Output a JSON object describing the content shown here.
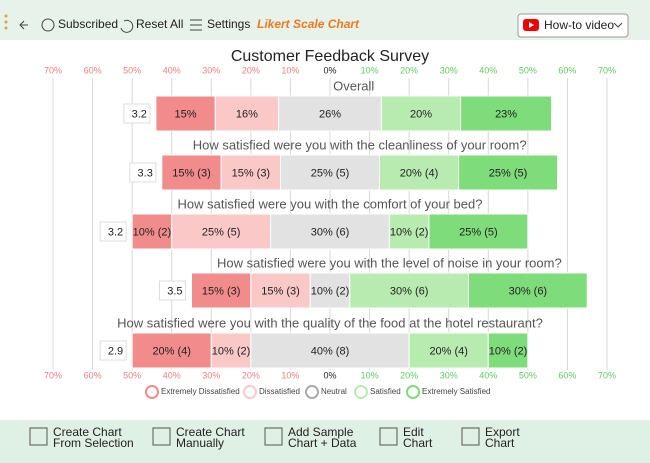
{
  "toolbar": {
    "subscribed": "Subscribed",
    "reset_all": "Reset All",
    "settings": "Settings",
    "chart_name": "Likert Scale Chart",
    "how_to": "How-to video"
  },
  "chart_data": {
    "type": "likert",
    "title": "Customer Feedback Survey",
    "xlim": [
      -70,
      70
    ],
    "xticks": [
      {
        "value": -70,
        "label": "70%"
      },
      {
        "value": -60,
        "label": "60%"
      },
      {
        "value": -50,
        "label": "50%"
      },
      {
        "value": -40,
        "label": "40%"
      },
      {
        "value": -30,
        "label": "30%"
      },
      {
        "value": -20,
        "label": "20%"
      },
      {
        "value": -10,
        "label": "10%"
      },
      {
        "value": 0,
        "label": "0%"
      },
      {
        "value": 10,
        "label": "10%"
      },
      {
        "value": 20,
        "label": "20%"
      },
      {
        "value": 30,
        "label": "30%"
      },
      {
        "value": 40,
        "label": "40%"
      },
      {
        "value": 50,
        "label": "50%"
      },
      {
        "value": 60,
        "label": "60%"
      },
      {
        "value": 70,
        "label": "70%"
      }
    ],
    "grid": true,
    "categories": [
      "Overall",
      "How satisfied were you with the cleanliness of your room?",
      "How satisfied were you with the comfort of your bed?",
      "How satisfied were you with the level of noise in your room?",
      "How satisfied were you with the quality of the food at the hotel restaurant?"
    ],
    "scores": [
      "3.2",
      "3.3",
      "3.2",
      "3.5",
      "2.9"
    ],
    "series": [
      {
        "name": "Extremely Dissatisfied",
        "color": "#f28b8b",
        "values": [
          15,
          15,
          10,
          15,
          20
        ],
        "value_labels": [
          "15%",
          "15% (3)",
          "10% (2)",
          "15% (3)",
          "20% (4)"
        ]
      },
      {
        "name": "Dissatisfied",
        "color": "#fbc8c8",
        "values": [
          16,
          15,
          25,
          15,
          10
        ],
        "value_labels": [
          "16%",
          "15% (3)",
          "25% (5)",
          "15% (3)",
          "10% (2)"
        ]
      },
      {
        "name": "Neutral",
        "color": "#e2e2e2",
        "values": [
          26,
          25,
          30,
          10,
          40
        ],
        "value_labels": [
          "26%",
          "25% (5)",
          "30% (6)",
          "10% (2)",
          "40% (8)"
        ]
      },
      {
        "name": "Satisfied",
        "color": "#b8ebaf",
        "values": [
          20,
          20,
          10,
          30,
          20
        ],
        "value_labels": [
          "20%",
          "20% (4)",
          "10% (2)",
          "30% (6)",
          "20% (4)"
        ]
      },
      {
        "name": "Extremely Satisfied",
        "color": "#7edc7a",
        "values": [
          23,
          25,
          25,
          30,
          10
        ],
        "value_labels": [
          "23%",
          "25% (5)",
          "25% (5)",
          "30% (6)",
          "10% (2)"
        ]
      }
    ]
  },
  "footer": {
    "buttons": [
      [
        "Create Chart",
        "From Selection"
      ],
      [
        "Create Chart",
        "Manually"
      ],
      [
        "Add Sample",
        "Chart + Data"
      ],
      [
        "Edit",
        "Chart"
      ],
      [
        "Export",
        "Chart"
      ]
    ]
  }
}
